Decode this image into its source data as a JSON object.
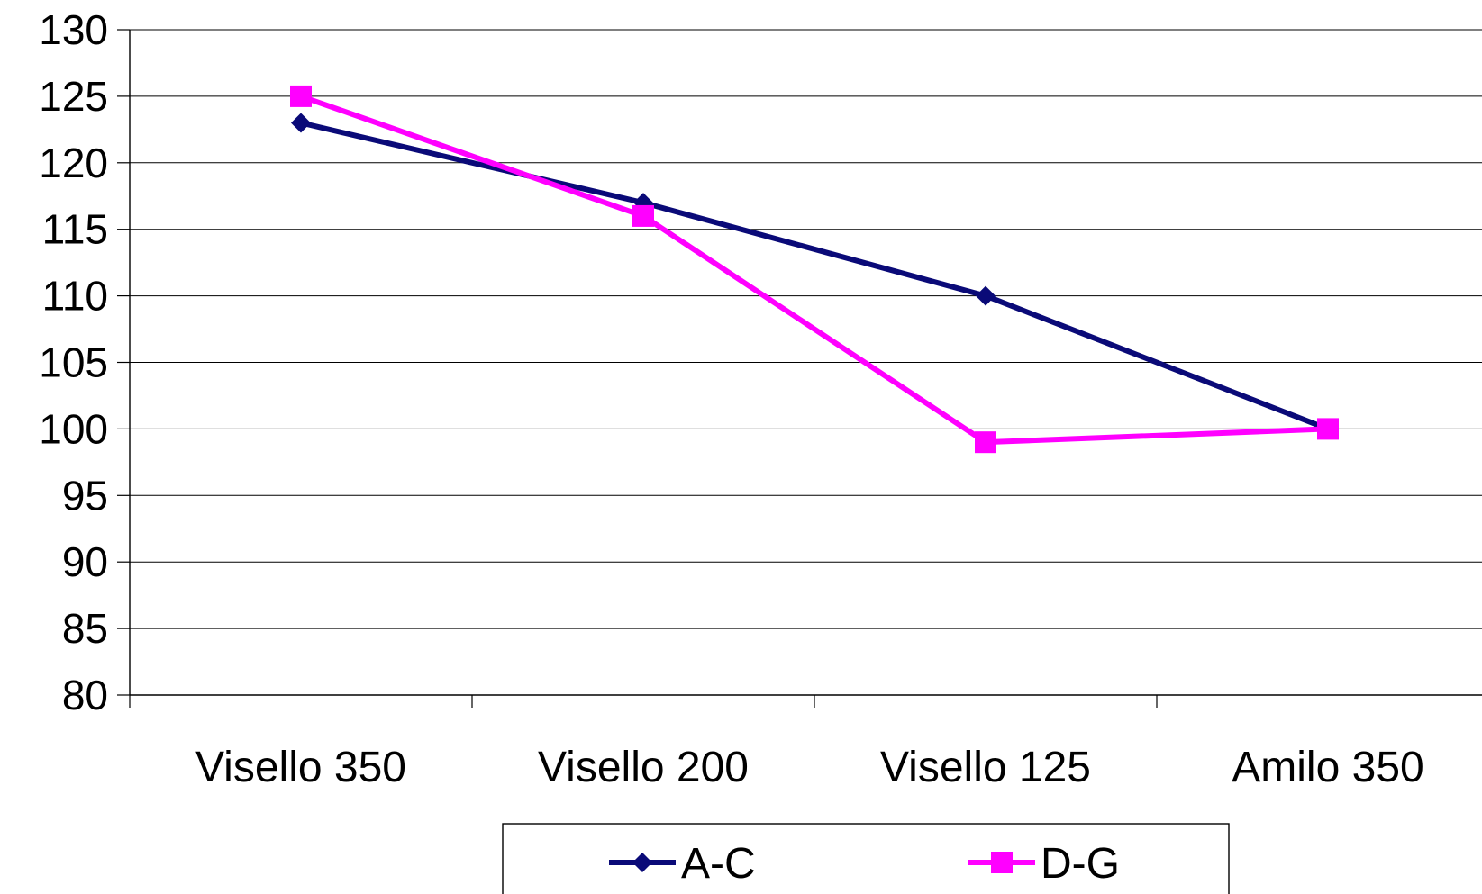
{
  "chart_data": {
    "type": "line",
    "categories": [
      "Visello 350",
      "Visello 200",
      "Visello 125",
      "Amilo 350"
    ],
    "series": [
      {
        "name": "A-C",
        "values": [
          123,
          117,
          110,
          100
        ],
        "color": "#0a0a78",
        "marker": "diamond"
      },
      {
        "name": "D-G",
        "values": [
          125,
          116,
          99,
          100
        ],
        "color": "#ff00ff",
        "marker": "square"
      }
    ],
    "ylim": [
      80,
      130
    ],
    "yticks": [
      80,
      85,
      90,
      95,
      100,
      105,
      110,
      115,
      120,
      125,
      130
    ],
    "grid": true,
    "legend_position": "bottom",
    "title": "",
    "xlabel": "",
    "ylabel": ""
  }
}
